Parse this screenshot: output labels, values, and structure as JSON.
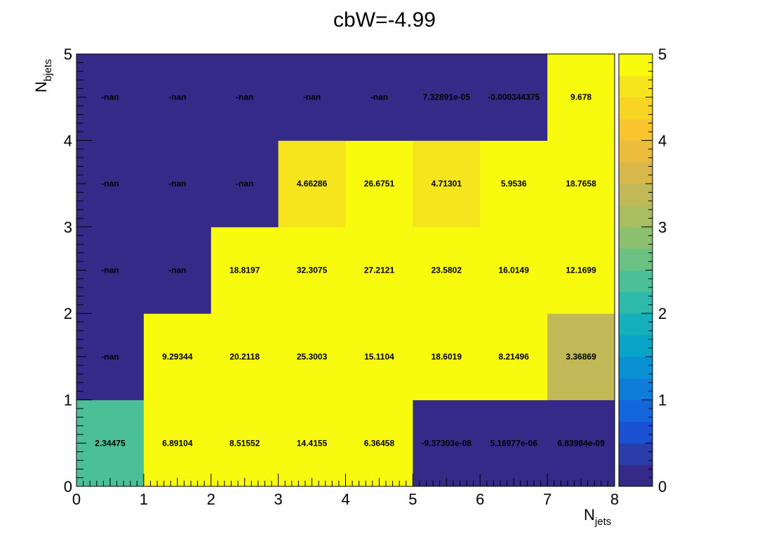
{
  "chart_data": {
    "type": "heatmap",
    "title": "cbW=-4.99",
    "xlabel": {
      "base": "N",
      "sub": "jets"
    },
    "ylabel": {
      "base": "N",
      "sub": "bjets"
    },
    "xlim": [
      0,
      8
    ],
    "ylim": [
      0,
      5
    ],
    "zlim": [
      0,
      5
    ],
    "x_ticks": [
      "0",
      "1",
      "2",
      "3",
      "4",
      "5",
      "6",
      "7",
      "8"
    ],
    "y_ticks": [
      "0",
      "1",
      "2",
      "3",
      "4",
      "5"
    ],
    "z_ticks": [
      "0",
      "1",
      "2",
      "3",
      "4",
      "5"
    ],
    "x_bins": [
      0,
      1,
      2,
      3,
      4,
      5,
      6,
      7
    ],
    "y_bins": [
      0,
      1,
      2,
      3,
      4
    ],
    "cell_labels": [
      [
        "2.34475",
        "6.89104",
        "8.51552",
        "14.4155",
        "6.36458",
        "-9.37303e-08",
        "5.16977e-06",
        "6.83984e-09"
      ],
      [
        "-nan",
        "9.29344",
        "20.2118",
        "25.3003",
        "15.1104",
        "18.6019",
        "8.21496",
        "3.36869"
      ],
      [
        "-nan",
        "-nan",
        "18.8197",
        "32.3075",
        "27.2121",
        "23.5802",
        "16.0149",
        "12.1699"
      ],
      [
        "-nan",
        "-nan",
        "-nan",
        "4.66286",
        "26.6751",
        "4.71301",
        "5.9536",
        "18.7658"
      ],
      [
        "-nan",
        "-nan",
        "-nan",
        "-nan",
        "-nan",
        "7.32891e-05",
        "-0.000344375",
        "9.678"
      ]
    ],
    "palette": [
      "#352a87",
      "#2a3da8",
      "#1b52d4",
      "#1366dc",
      "#0f7dd8",
      "#0a91d3",
      "#07a4c8",
      "#16b0bc",
      "#2dbaa8",
      "#4bbf97",
      "#6ac182",
      "#8cc06e",
      "#a9bd61",
      "#c1b957",
      "#d9b84b",
      "#ecbc3c",
      "#f8c52e",
      "#f8d523",
      "#f6e51c",
      "#f9fb0e"
    ],
    "nan_color": "#352a87"
  }
}
